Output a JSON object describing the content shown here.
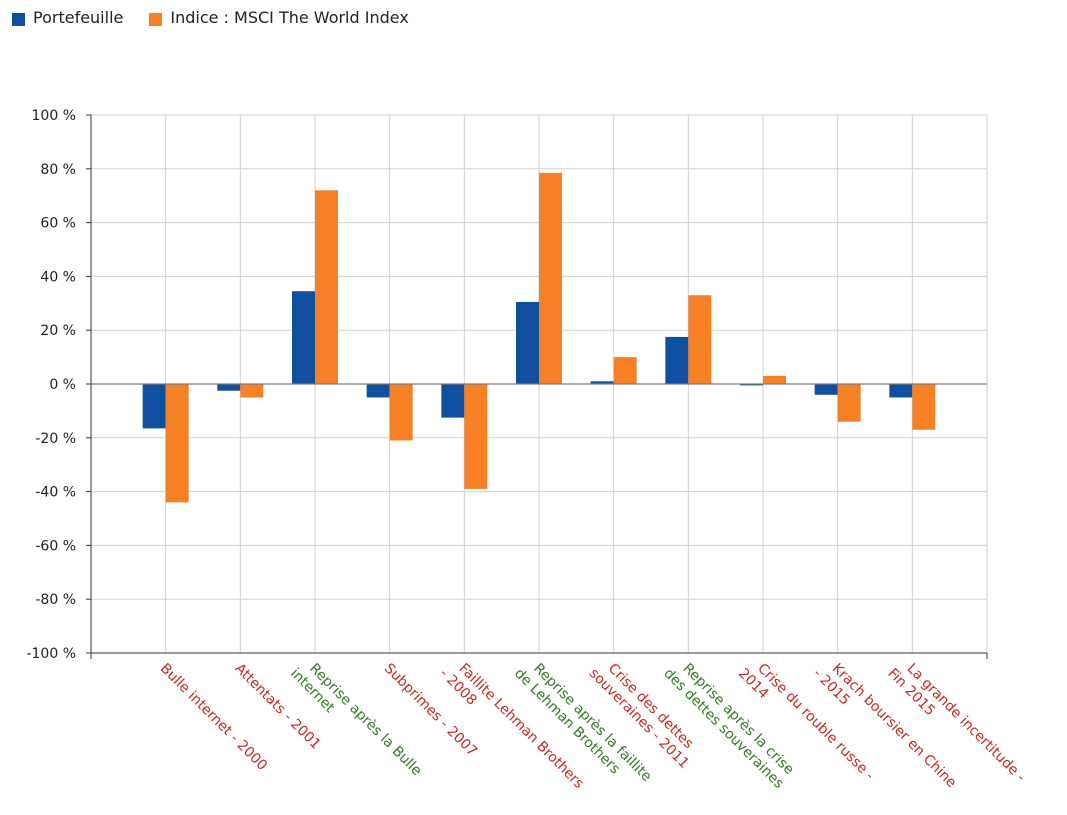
{
  "legend": {
    "items": [
      {
        "label": "Portefeuille",
        "color": "#0f4fa0"
      },
      {
        "label": "Indice : MSCI The World Index",
        "color": "#f58025"
      }
    ]
  },
  "chart_data": {
    "type": "bar",
    "title": "",
    "xlabel": "",
    "ylabel": "",
    "ylim": [
      -100,
      100
    ],
    "yticks": [
      100,
      80,
      60,
      40,
      20,
      0,
      -20,
      -40,
      -60,
      -80,
      -100
    ],
    "ytick_labels": [
      "100 %",
      "80 %",
      "60 %",
      "40 %",
      "20 %",
      "0 %",
      "-20 %",
      "-40 %",
      "-60 %",
      "-80 %",
      "-100 %"
    ],
    "grid": true,
    "legend_position": "top-left",
    "categories": [
      {
        "lines": [
          "Bulle internet - 2000"
        ],
        "color": "#c8281e"
      },
      {
        "lines": [
          "Attentats - 2001"
        ],
        "color": "#c8281e"
      },
      {
        "lines": [
          "Reprise après la Bulle",
          "internet"
        ],
        "color": "#2e7d1e"
      },
      {
        "lines": [
          "Subprimes - 2007"
        ],
        "color": "#c8281e"
      },
      {
        "lines": [
          "Faillite Lehman Brothers",
          "- 2008"
        ],
        "color": "#c8281e"
      },
      {
        "lines": [
          "Reprise après la faillite",
          "de Lehman Brothers"
        ],
        "color": "#2e7d1e"
      },
      {
        "lines": [
          "Crise des dettes",
          "souveraines - 2011"
        ],
        "color": "#c8281e"
      },
      {
        "lines": [
          "Reprise après la crise",
          "des dettes souveraines"
        ],
        "color": "#2e7d1e"
      },
      {
        "lines": [
          "Crise du rouble russe -",
          "2014"
        ],
        "color": "#c8281e"
      },
      {
        "lines": [
          "Krach boursier en Chine",
          "- 2015"
        ],
        "color": "#c8281e"
      },
      {
        "lines": [
          "La grande incertitude -",
          "Fin 2015"
        ],
        "color": "#c8281e"
      }
    ],
    "series": [
      {
        "name": "Portefeuille",
        "color": "#0f4fa0",
        "values": [
          -16.5,
          -2.5,
          34.5,
          -5,
          -12.5,
          30.5,
          1,
          17.5,
          -0.5,
          -4,
          -5
        ]
      },
      {
        "name": "Indice : MSCI The World Index",
        "color": "#f58025",
        "values": [
          -44,
          -5,
          72,
          -21,
          -39,
          78.5,
          10,
          33,
          3,
          -14,
          -17
        ]
      }
    ]
  }
}
